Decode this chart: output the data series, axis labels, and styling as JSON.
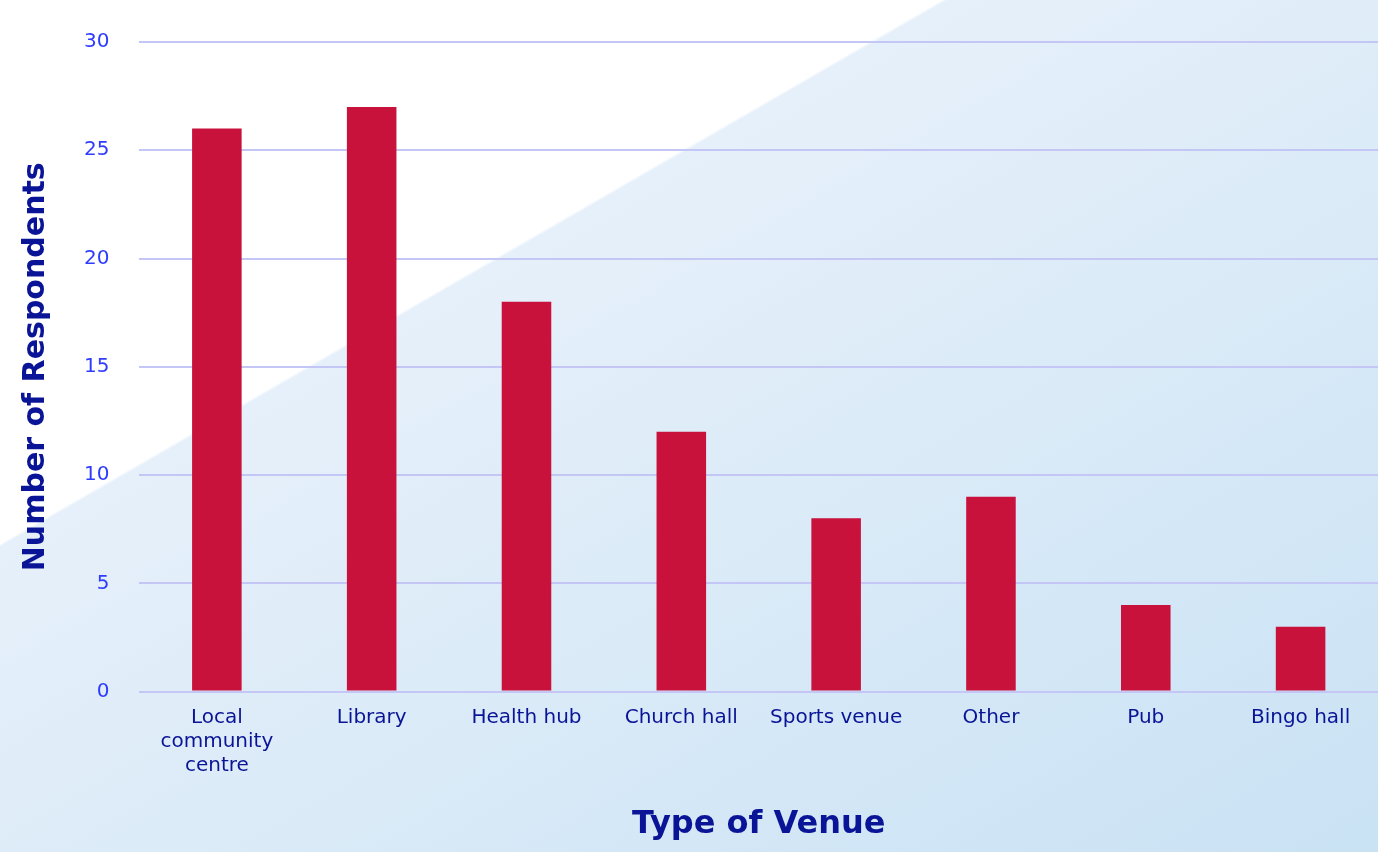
{
  "chart_data": {
    "type": "bar",
    "xlabel": "Type of Venue",
    "ylabel": "Number of Respondents",
    "categories": [
      "Local community centre",
      "Library",
      "Health hub",
      "Church hall",
      "Sports venue",
      "Other",
      "Pub",
      "Bingo hall"
    ],
    "values": [
      26,
      27,
      18,
      12,
      8,
      9,
      4,
      3
    ],
    "color": "#c8113b",
    "ylim": [
      0,
      30
    ],
    "yticks": [
      0,
      5,
      10,
      15,
      20,
      25,
      30
    ],
    "grid": "y",
    "legend": false
  }
}
